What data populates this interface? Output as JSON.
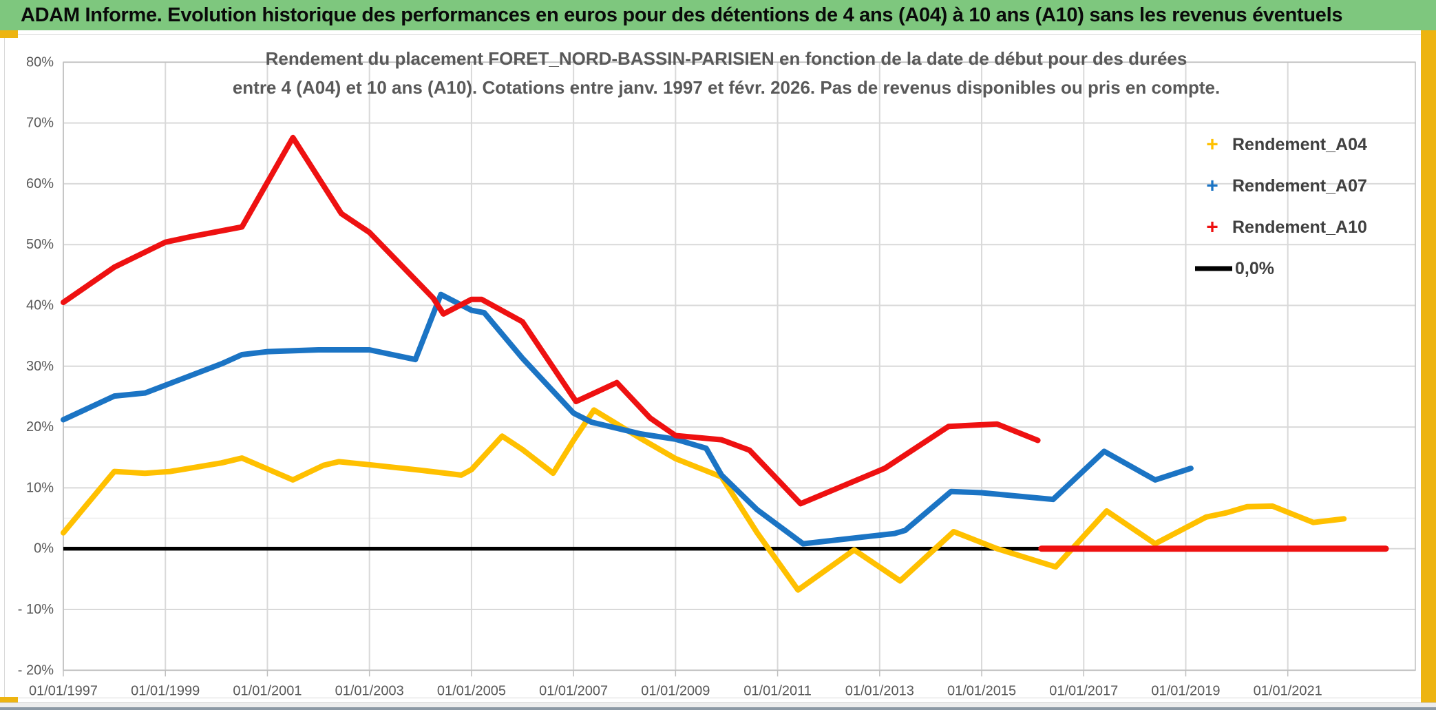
{
  "banner": {
    "title": "ADAM Informe. Evolution historique des performances en euros pour des détentions de 4 ans (A04) à 10 ans (A10) sans les revenus éventuels"
  },
  "theme": {
    "banner_green": "#7EC77E",
    "gold": "#EDB411",
    "grid": "#D9D9D9",
    "minor_grid": "#ECECEC",
    "plot_border": "#BFBFBF",
    "text_gray": "#595959",
    "bottom_bar": "#8C99A5"
  },
  "chart_data": {
    "type": "line",
    "title_line1": "Rendement du placement FORET_NORD-BASSIN-PARISIEN en fonction de la date de début pour des durées",
    "title_line2": "entre 4 (A04) et 10 ans (A10). Cotations entre janv. 1997 et févr. 2026. Pas de revenus disponibles ou pris en compte.",
    "x_axis": {
      "unit": "decimal_year",
      "tick_years": [
        1997,
        1999,
        2001,
        2003,
        2005,
        2007,
        2009,
        2011,
        2013,
        2015,
        2017,
        2019,
        2021
      ],
      "tick_labels": [
        "01/01/1997",
        "01/01/1999",
        "01/01/2001",
        "01/01/2003",
        "01/01/2005",
        "01/01/2007",
        "01/01/2009",
        "01/01/2011",
        "01/01/2013",
        "01/01/2015",
        "01/01/2017",
        "01/01/2019",
        "01/01/2021"
      ],
      "domain": [
        1997,
        2023.5
      ]
    },
    "y_axis": {
      "unit": "percent",
      "tick_values": [
        80,
        70,
        60,
        50,
        40,
        30,
        20,
        10,
        0,
        -10,
        -20
      ],
      "tick_labels": [
        "80%",
        "70%",
        "60%",
        "50%",
        "40%",
        "30%",
        "20%",
        "10%",
        "0%",
        "- 10%",
        "- 20%"
      ],
      "domain": [
        -20,
        80
      ],
      "minor_line_value": 5
    },
    "grid": true,
    "legend_position": "right-inside",
    "legend": [
      {
        "label": "Rendement_A04",
        "color": "#FFC000",
        "marker": "+"
      },
      {
        "label": "Rendement_A07",
        "color": "#1B74C4",
        "marker": "+"
      },
      {
        "label": "Rendement_A10",
        "color": "#EE1111",
        "marker": "+"
      },
      {
        "label": "0,0%",
        "color": "#000000",
        "marker": "line"
      }
    ],
    "zero_series": {
      "name": "0,0%",
      "color": "#000000",
      "points": [
        [
          1997.0,
          0
        ],
        [
          2022.92,
          0
        ]
      ]
    },
    "series": [
      {
        "name": "Rendement_A04",
        "color": "#FFC000",
        "points": [
          [
            1997.0,
            2.6
          ],
          [
            1998.0,
            12.7
          ],
          [
            1998.6,
            12.4
          ],
          [
            1999.1,
            12.7
          ],
          [
            2000.1,
            14.1
          ],
          [
            2000.5,
            14.9
          ],
          [
            2001.0,
            13.1
          ],
          [
            2001.5,
            11.3
          ],
          [
            2002.1,
            13.7
          ],
          [
            2002.4,
            14.3
          ],
          [
            2003.0,
            13.8
          ],
          [
            2004.0,
            12.9
          ],
          [
            2004.8,
            12.1
          ],
          [
            2005.0,
            13.0
          ],
          [
            2005.6,
            18.5
          ],
          [
            2006.0,
            16.3
          ],
          [
            2006.6,
            12.4
          ],
          [
            2007.0,
            17.8
          ],
          [
            2007.4,
            22.8
          ],
          [
            2008.3,
            18.2
          ],
          [
            2009.0,
            14.8
          ],
          [
            2009.9,
            11.8
          ],
          [
            2010.6,
            2.6
          ],
          [
            2011.4,
            -6.8
          ],
          [
            2012.5,
            -0.2
          ],
          [
            2013.4,
            -5.3
          ],
          [
            2014.45,
            2.8
          ],
          [
            2015.3,
            0.0
          ],
          [
            2016.45,
            -3.0
          ],
          [
            2017.45,
            6.2
          ],
          [
            2018.4,
            0.8
          ],
          [
            2019.4,
            5.2
          ],
          [
            2019.8,
            5.9
          ],
          [
            2020.2,
            6.9
          ],
          [
            2020.7,
            7.0
          ],
          [
            2021.5,
            4.3
          ],
          [
            2022.1,
            4.9
          ]
        ]
      },
      {
        "name": "Rendement_A07",
        "color": "#1B74C4",
        "points": [
          [
            1997.0,
            21.2
          ],
          [
            1998.0,
            25.1
          ],
          [
            1998.6,
            25.6
          ],
          [
            2000.1,
            30.4
          ],
          [
            2000.5,
            31.9
          ],
          [
            2001.0,
            32.4
          ],
          [
            2002.0,
            32.7
          ],
          [
            2003.0,
            32.7
          ],
          [
            2003.9,
            31.1
          ],
          [
            2004.4,
            41.8
          ],
          [
            2005.0,
            39.2
          ],
          [
            2005.25,
            38.8
          ],
          [
            2006.0,
            31.3
          ],
          [
            2007.0,
            22.3
          ],
          [
            2007.35,
            20.8
          ],
          [
            2008.3,
            18.9
          ],
          [
            2009.0,
            18.0
          ],
          [
            2009.6,
            16.5
          ],
          [
            2009.9,
            12.1
          ],
          [
            2010.6,
            6.4
          ],
          [
            2011.5,
            0.8
          ],
          [
            2013.3,
            2.5
          ],
          [
            2013.5,
            3.0
          ],
          [
            2014.4,
            9.4
          ],
          [
            2015.0,
            9.2
          ],
          [
            2016.4,
            8.1
          ],
          [
            2017.4,
            16.0
          ],
          [
            2018.4,
            11.3
          ],
          [
            2019.1,
            13.2
          ]
        ]
      },
      {
        "name": "Rendement_A10",
        "color": "#EE1111",
        "points": [
          [
            1997.0,
            40.5
          ],
          [
            1998.0,
            46.3
          ],
          [
            1999.0,
            50.4
          ],
          [
            1999.5,
            51.3
          ],
          [
            2000.5,
            52.9
          ],
          [
            2001.5,
            67.6
          ],
          [
            2002.45,
            55.1
          ],
          [
            2003.0,
            52.0
          ],
          [
            2004.25,
            41.2
          ],
          [
            2004.45,
            38.6
          ],
          [
            2005.0,
            41.0
          ],
          [
            2005.2,
            41.0
          ],
          [
            2006.0,
            37.3
          ],
          [
            2007.05,
            24.2
          ],
          [
            2007.85,
            27.3
          ],
          [
            2008.5,
            21.5
          ],
          [
            2009.0,
            18.6
          ],
          [
            2009.9,
            17.9
          ],
          [
            2010.45,
            16.2
          ],
          [
            2011.45,
            7.4
          ],
          [
            2013.1,
            13.2
          ],
          [
            2014.35,
            20.1
          ],
          [
            2015.3,
            20.5
          ],
          [
            2016.1,
            17.8
          ]
        ],
        "zero_extension": [
          [
            2016.17,
            0
          ],
          [
            2022.92,
            0
          ]
        ]
      }
    ]
  }
}
